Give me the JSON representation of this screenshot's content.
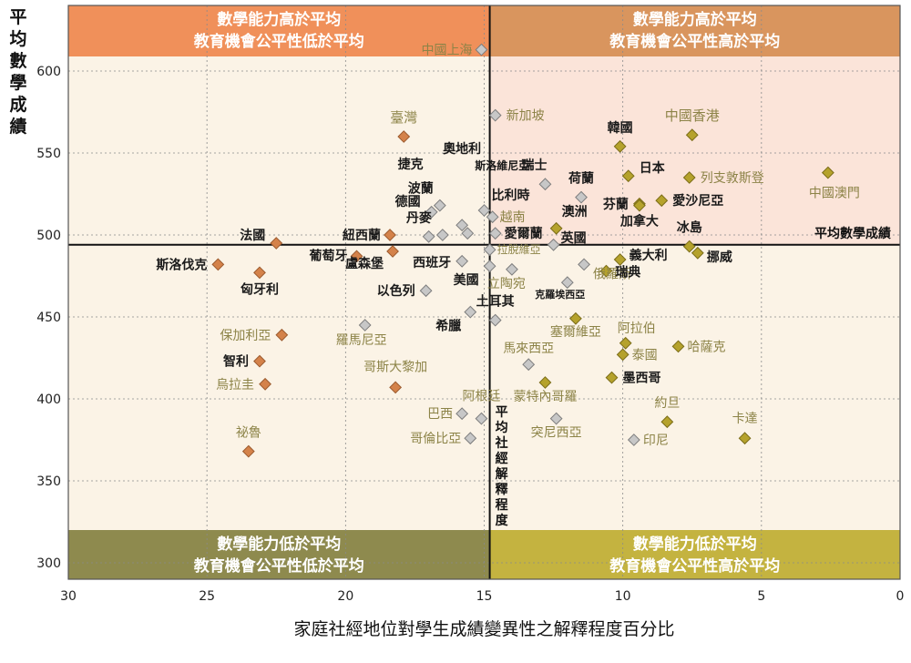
{
  "chart_data": {
    "type": "scatter",
    "title": "",
    "ylabel": "平均數學成績",
    "xlabel": "家庭社經地位對學生成績變異性之解釋程度百分比",
    "xlim": [
      30,
      0
    ],
    "ylim": [
      290,
      640
    ],
    "x_reversed": true,
    "x_ticks": [
      30,
      25,
      20,
      15,
      10,
      5,
      0
    ],
    "y_ticks": [
      300,
      350,
      400,
      450,
      500,
      550,
      600
    ],
    "grid": true,
    "average_lines": {
      "x": 14.8,
      "y": 494,
      "x_label": "平均社經解釋程度",
      "y_label": "平均數學成績"
    },
    "quadrants": {
      "top_left": [
        "數學能力高於平均",
        "教育機會公平性低於平均"
      ],
      "top_right": [
        "數學能力高於平均",
        "教育機會公平性高於平均"
      ],
      "bottom_left": [
        "數學能力低於平均",
        "教育機會公平性低於平均"
      ],
      "bottom_right": [
        "數學能力低於平均",
        "教育機會公平性高於平均"
      ]
    },
    "colors": {
      "orange": "#d4824a",
      "olive": "#b5a22c",
      "gray": "#c7c7c7",
      "label_dark": "#1a1a1a",
      "label_olive": "#8c8347",
      "top_left_band": "#f0905a",
      "top_right_band": "#d9955e",
      "bottom_left_band": "#8e8a4e",
      "bottom_right_band": "#c4b340",
      "bg_left": "#fbf3e6",
      "bg_top_right": "#fbe4d9",
      "bg_bottom_right": "#fbf3e6"
    },
    "points": [
      {
        "name": "中國上海",
        "x": 15.1,
        "y": 613,
        "color": "gray",
        "label_color": "olive"
      },
      {
        "name": "新加坡",
        "x": 14.6,
        "y": 573,
        "color": "gray",
        "label_color": "olive"
      },
      {
        "name": "臺灣",
        "x": 17.9,
        "y": 560,
        "color": "orange",
        "label_color": "olive"
      },
      {
        "name": "中國香港",
        "x": 7.5,
        "y": 561,
        "color": "olive",
        "label_color": "olive"
      },
      {
        "name": "韓國",
        "x": 10.1,
        "y": 554,
        "color": "olive",
        "label_color": "dark"
      },
      {
        "name": "中國澳門",
        "x": 2.6,
        "y": 538,
        "color": "olive",
        "label_color": "olive"
      },
      {
        "name": "日本",
        "x": 9.8,
        "y": 536,
        "color": "olive",
        "label_color": "dark"
      },
      {
        "name": "列支敦斯登",
        "x": 7.6,
        "y": 535,
        "color": "olive",
        "label_color": "olive"
      },
      {
        "name": "瑞士",
        "x": 12.8,
        "y": 531,
        "color": "gray",
        "label_color": "dark"
      },
      {
        "name": "荷蘭",
        "x": 11.5,
        "y": 523,
        "color": "gray",
        "label_color": "dark"
      },
      {
        "name": "愛沙尼亞",
        "x": 8.6,
        "y": 521,
        "color": "olive",
        "label_color": "dark"
      },
      {
        "name": "芬蘭",
        "x": 9.4,
        "y": 519,
        "color": "olive",
        "label_color": "dark"
      },
      {
        "name": "加拿大",
        "x": 9.4,
        "y": 518,
        "color": "olive",
        "label_color": "dark"
      },
      {
        "name": "波蘭",
        "x": 16.6,
        "y": 518,
        "color": "gray",
        "label_color": "dark"
      },
      {
        "name": "比利時",
        "x": 15.0,
        "y": 515,
        "color": "gray",
        "label_color": "dark"
      },
      {
        "name": "德國",
        "x": 16.9,
        "y": 514,
        "color": "gray",
        "label_color": "dark"
      },
      {
        "name": "越南",
        "x": 14.7,
        "y": 511,
        "color": "gray",
        "label_color": "olive"
      },
      {
        "name": "奧地利",
        "x": 15.8,
        "y": 506,
        "color": "gray",
        "label_color": "dark"
      },
      {
        "name": "澳洲",
        "x": 12.4,
        "y": 504,
        "color": "olive",
        "label_color": "dark"
      },
      {
        "name": "愛爾蘭",
        "x": 14.6,
        "y": 501,
        "color": "gray",
        "label_color": "dark"
      },
      {
        "name": "斯洛維尼亞",
        "x": 15.6,
        "y": 501,
        "color": "gray",
        "label_color": "dark"
      },
      {
        "name": "丹麥",
        "x": 16.5,
        "y": 500,
        "color": "gray",
        "label_color": "dark"
      },
      {
        "name": "紐西蘭",
        "x": 18.4,
        "y": 500,
        "color": "orange",
        "label_color": "dark"
      },
      {
        "name": "捷克",
        "x": 17.0,
        "y": 499,
        "color": "gray",
        "label_color": "dark"
      },
      {
        "name": "法國",
        "x": 22.5,
        "y": 495,
        "color": "orange",
        "label_color": "dark"
      },
      {
        "name": "冰島",
        "x": 7.6,
        "y": 493,
        "color": "olive",
        "label_color": "dark"
      },
      {
        "name": "英國",
        "x": 12.5,
        "y": 494,
        "color": "gray",
        "label_color": "dark"
      },
      {
        "name": "挪威",
        "x": 7.3,
        "y": 489,
        "color": "olive",
        "label_color": "dark"
      },
      {
        "name": "盧森堡",
        "x": 18.3,
        "y": 490,
        "color": "orange",
        "label_color": "dark"
      },
      {
        "name": "拉脫維亞",
        "x": 14.8,
        "y": 491,
        "color": "gray",
        "label_color": "olive"
      },
      {
        "name": "葡萄牙",
        "x": 19.6,
        "y": 487,
        "color": "orange",
        "label_color": "dark"
      },
      {
        "name": "義大利",
        "x": 10.1,
        "y": 485,
        "color": "olive",
        "label_color": "dark"
      },
      {
        "name": "西班牙",
        "x": 15.8,
        "y": 484,
        "color": "gray",
        "label_color": "dark"
      },
      {
        "name": "俄羅斯",
        "x": 11.4,
        "y": 482,
        "color": "gray",
        "label_color": "olive"
      },
      {
        "name": "斯洛伐克",
        "x": 24.6,
        "y": 482,
        "color": "orange",
        "label_color": "dark"
      },
      {
        "name": "美國",
        "x": 14.8,
        "y": 481,
        "color": "gray",
        "label_color": "dark"
      },
      {
        "name": "立陶宛",
        "x": 14.0,
        "y": 479,
        "color": "gray",
        "label_color": "olive"
      },
      {
        "name": "瑞典",
        "x": 10.6,
        "y": 478,
        "color": "olive",
        "label_color": "dark"
      },
      {
        "name": "匈牙利",
        "x": 23.1,
        "y": 477,
        "color": "orange",
        "label_color": "dark"
      },
      {
        "name": "克羅埃西亞",
        "x": 12.0,
        "y": 471,
        "color": "gray",
        "label_color": "dark"
      },
      {
        "name": "以色列",
        "x": 17.1,
        "y": 466,
        "color": "gray",
        "label_color": "dark"
      },
      {
        "name": "希臘",
        "x": 15.5,
        "y": 453,
        "color": "gray",
        "label_color": "dark"
      },
      {
        "name": "塞爾維亞",
        "x": 11.7,
        "y": 449,
        "color": "olive",
        "label_color": "olive"
      },
      {
        "name": "土耳其",
        "x": 14.6,
        "y": 448,
        "color": "gray",
        "label_color": "dark"
      },
      {
        "name": "羅馬尼亞",
        "x": 19.3,
        "y": 445,
        "color": "gray",
        "label_color": "olive"
      },
      {
        "name": "保加利亞",
        "x": 22.3,
        "y": 439,
        "color": "orange",
        "label_color": "olive"
      },
      {
        "name": "阿拉伯",
        "x": 9.9,
        "y": 434,
        "color": "olive",
        "label_color": "olive"
      },
      {
        "name": "哈薩克",
        "x": 8.0,
        "y": 432,
        "color": "olive",
        "label_color": "olive"
      },
      {
        "name": "泰國",
        "x": 10.0,
        "y": 427,
        "color": "olive",
        "label_color": "olive"
      },
      {
        "name": "智利",
        "x": 23.1,
        "y": 423,
        "color": "orange",
        "label_color": "dark"
      },
      {
        "name": "馬來西亞",
        "x": 13.4,
        "y": 421,
        "color": "gray",
        "label_color": "olive"
      },
      {
        "name": "墨西哥",
        "x": 10.4,
        "y": 413,
        "color": "olive",
        "label_color": "dark"
      },
      {
        "name": "蒙特內哥羅",
        "x": 12.8,
        "y": 410,
        "color": "olive",
        "label_color": "olive"
      },
      {
        "name": "烏拉圭",
        "x": 22.9,
        "y": 409,
        "color": "orange",
        "label_color": "olive"
      },
      {
        "name": "哥斯大黎加",
        "x": 18.2,
        "y": 407,
        "color": "orange",
        "label_color": "olive"
      },
      {
        "name": "巴西",
        "x": 15.8,
        "y": 391,
        "color": "gray",
        "label_color": "olive"
      },
      {
        "name": "阿根廷",
        "x": 15.1,
        "y": 388,
        "color": "gray",
        "label_color": "olive"
      },
      {
        "name": "突尼西亞",
        "x": 12.4,
        "y": 388,
        "color": "gray",
        "label_color": "olive"
      },
      {
        "name": "約旦",
        "x": 8.4,
        "y": 386,
        "color": "olive",
        "label_color": "olive"
      },
      {
        "name": "哥倫比亞",
        "x": 15.5,
        "y": 376,
        "color": "gray",
        "label_color": "olive"
      },
      {
        "name": "卡達",
        "x": 5.6,
        "y": 376,
        "color": "olive",
        "label_color": "olive"
      },
      {
        "name": "印尼",
        "x": 9.6,
        "y": 375,
        "color": "gray",
        "label_color": "olive"
      },
      {
        "name": "祕魯",
        "x": 23.5,
        "y": 368,
        "color": "orange",
        "label_color": "olive"
      }
    ]
  }
}
